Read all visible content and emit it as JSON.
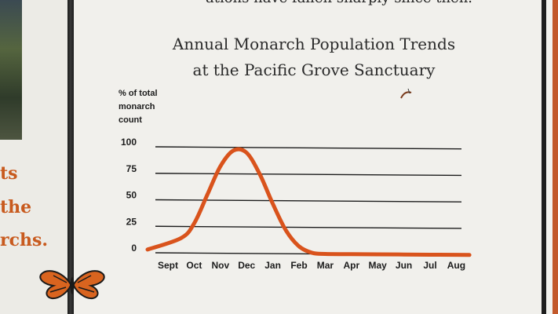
{
  "board": {
    "top_caption": "ations have fallen sharply since then.",
    "left_fragments": [
      "ts",
      "the",
      "rchs."
    ]
  },
  "chart_data": {
    "type": "line",
    "title": [
      "Annual Monarch Population Trends",
      "at the Pacific Grove Sanctuary"
    ],
    "ylabel": [
      "% of total",
      "monarch",
      "count"
    ],
    "xlabel": "",
    "yticks": [
      0,
      25,
      50,
      75,
      100
    ],
    "ylim": [
      0,
      100
    ],
    "grid": true,
    "categories": [
      "Sept",
      "Oct",
      "Nov",
      "Dec",
      "Jan",
      "Feb",
      "Mar",
      "Apr",
      "May",
      "Jun",
      "Jul",
      "Aug"
    ],
    "x": [
      0,
      0.5,
      1,
      1.5,
      2,
      2.5,
      3,
      3.5,
      4,
      4.5,
      5,
      5.5,
      6,
      7,
      8,
      9,
      10,
      11,
      11.5
    ],
    "y": [
      3,
      14,
      28,
      55,
      82,
      97,
      95,
      75,
      47,
      22,
      7,
      1,
      0,
      0,
      0,
      0,
      0,
      0,
      0
    ],
    "colors": {
      "line": "#d9531c",
      "grid": "#1c1c1c",
      "text": "#1c1c1c"
    }
  }
}
